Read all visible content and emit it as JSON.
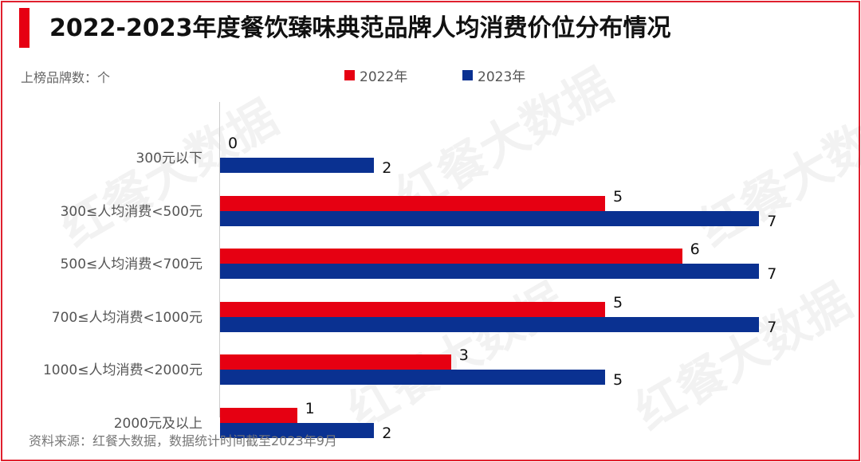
{
  "header": {
    "title": "2022-2023年度餐饮臻味典范品牌人均消费价位分布情况"
  },
  "unit_label": "上榜品牌数：个",
  "legend": [
    {
      "label": "2022年",
      "color": "#e60012"
    },
    {
      "label": "2023年",
      "color": "#0a3191"
    }
  ],
  "source": "资料来源：红餐大数据，数据统计时间截至2023年9月",
  "watermark": "红餐大数据",
  "chart_data": {
    "type": "bar",
    "orientation": "horizontal",
    "title": "2022-2023年度餐饮臻味典范品牌人均消费价位分布情况",
    "ylabel": "上榜品牌数：个",
    "categories": [
      "300元以下",
      "300≤人均消费<500元",
      "500≤人均消费<700元",
      "700≤人均消费<1000元",
      "1000≤人均消费<2000元",
      "2000元及以上"
    ],
    "series": [
      {
        "name": "2022年",
        "color": "#e60012",
        "values": [
          0,
          5,
          6,
          5,
          3,
          1
        ]
      },
      {
        "name": "2023年",
        "color": "#0a3191",
        "values": [
          2,
          7,
          7,
          7,
          5,
          2
        ]
      }
    ],
    "xlim": [
      0,
      7
    ],
    "grid": false,
    "legend_position": "top"
  }
}
